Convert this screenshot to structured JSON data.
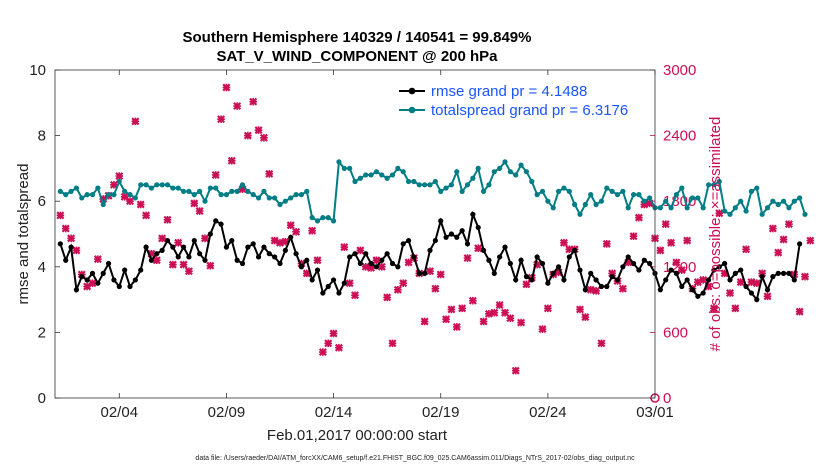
{
  "chart_data": {
    "type": "line",
    "title": "Southern Hemisphere 140329 / 140541 = 99.849%",
    "subtitle": "SAT_V_WIND_COMPONENT @ 200 hPa",
    "xlabel": "Feb.01,2017 00:00:00 start",
    "ylabel": "rmse and totalspread",
    "y2label": "# of obs: o=possible; ×=assimilated",
    "xlim": [
      1,
      29
    ],
    "ylim": [
      0,
      10
    ],
    "y2lim": [
      0,
      3000
    ],
    "xticks": [
      {
        "value": 4,
        "label": "02/04"
      },
      {
        "value": 9,
        "label": "02/09"
      },
      {
        "value": 14,
        "label": "02/14"
      },
      {
        "value": 19,
        "label": "02/19"
      },
      {
        "value": 24,
        "label": "02/24"
      },
      {
        "value": 29,
        "label": "03/01"
      }
    ],
    "yticks": [
      "0",
      "2",
      "4",
      "6",
      "8",
      "10"
    ],
    "y2ticks": [
      "0",
      "600",
      "1200",
      "1800",
      "2400",
      "3000"
    ],
    "legend_position": "top-right",
    "x_step_days": 0.25,
    "series": [
      {
        "name": "rmse grand pr = 4.1488",
        "color": "#000000",
        "axis": "left",
        "values": [
          4.7,
          4.2,
          4.6,
          3.3,
          3.7,
          3.6,
          3.8,
          3.5,
          3.8,
          4.1,
          3.6,
          3.4,
          3.9,
          3.4,
          3.6,
          3.9,
          4.6,
          4.2,
          4.4,
          4.5,
          4.8,
          4.6,
          4.3,
          4.6,
          4.3,
          4.8,
          4.4,
          4.2,
          5.0,
          5.4,
          5.3,
          4.6,
          4.8,
          4.2,
          4.1,
          4.6,
          4.7,
          4.3,
          4.6,
          4.4,
          4.3,
          4.1,
          4.5,
          4.9,
          4.4,
          4.0,
          4.2,
          3.6,
          3.9,
          3.2,
          3.4,
          3.6,
          3.2,
          3.5,
          4.3,
          4.4,
          4.1,
          4.4,
          4.1,
          4.0,
          4.2,
          4.4,
          4.1,
          4.0,
          4.7,
          4.8,
          4.3,
          3.8,
          3.8,
          4.5,
          4.8,
          5.4,
          4.9,
          5.0,
          4.9,
          5.1,
          4.7,
          5.6,
          5.2,
          4.5,
          4.2,
          3.8,
          4.3,
          4.6,
          4.1,
          3.6,
          4.2,
          3.7,
          3.6,
          4.3,
          4.1,
          3.5,
          3.8,
          4.0,
          3.6,
          4.3,
          4.5,
          3.9,
          3.3,
          3.8,
          3.6,
          3.4,
          3.4,
          3.7,
          3.6,
          4.0,
          4.3,
          4.1,
          3.9,
          4.2,
          4.1,
          3.8,
          3.3,
          3.6,
          3.9,
          3.8,
          3.4,
          3.6,
          3.3,
          3.1,
          3.2,
          3.6,
          3.9,
          4.0,
          4.1,
          3.6,
          3.8,
          3.9,
          3.4,
          3.2,
          3.0,
          3.7,
          3.3,
          3.7,
          3.8,
          3.8,
          3.8,
          3.6,
          4.7
        ]
      },
      {
        "name": "totalspread grand pr = 6.3176",
        "color": "#007d85",
        "axis": "left",
        "values": [
          6.3,
          6.2,
          6.3,
          6.4,
          6.1,
          6.2,
          6.2,
          6.4,
          5.9,
          6.2,
          6.2,
          6.6,
          6.3,
          6.2,
          6.1,
          6.5,
          6.5,
          6.4,
          6.5,
          6.5,
          6.5,
          6.4,
          6.4,
          6.3,
          6.3,
          6.2,
          6.3,
          6.0,
          6.4,
          6.4,
          6.2,
          6.2,
          6.3,
          6.3,
          6.5,
          6.3,
          6.2,
          6.1,
          6.3,
          6.1,
          6.1,
          5.9,
          6.0,
          6.1,
          6.2,
          6.2,
          6.3,
          5.5,
          5.4,
          5.5,
          5.5,
          5.4,
          7.2,
          7.0,
          7.0,
          6.6,
          6.7,
          6.8,
          6.8,
          6.9,
          6.8,
          6.7,
          6.8,
          7.0,
          6.9,
          6.6,
          6.6,
          6.5,
          6.5,
          6.5,
          6.6,
          6.3,
          6.4,
          6.5,
          6.9,
          6.3,
          6.5,
          6.7,
          7.0,
          6.3,
          6.5,
          6.9,
          7.0,
          7.2,
          6.9,
          6.8,
          7.1,
          6.9,
          6.6,
          6.2,
          6.3,
          6.0,
          5.8,
          6.3,
          6.4,
          6.3,
          5.9,
          5.6,
          5.9,
          6.2,
          5.9,
          6.0,
          6.4,
          6.3,
          6.2,
          6.3,
          5.8,
          6.2,
          6.2,
          6.0,
          6.1,
          5.8,
          5.8,
          6.0,
          5.8,
          6.2,
          6.4,
          5.8,
          6.1,
          6.1,
          5.8,
          6.5,
          6.5,
          6.6,
          5.7,
          5.6,
          5.8,
          6.0,
          5.7,
          6.3,
          6.4,
          5.6,
          5.8,
          6.0,
          5.9,
          6.0,
          5.8,
          6.0,
          6.1,
          5.6
        ]
      },
      {
        "name": "assimilated",
        "color": "#cc0e55",
        "axis": "right",
        "marker": "x",
        "values": [
          1670,
          1550,
          1460,
          1350,
          1130,
          1020,
          1050,
          1270,
          1820,
          1850,
          1950,
          2030,
          1840,
          1800,
          2530,
          1770,
          1670,
          1320,
          1260,
          1460,
          1630,
          1220,
          1420,
          1220,
          1160,
          1780,
          1710,
          1460,
          1210,
          2040,
          2550,
          2840,
          2170,
          2670,
          1910,
          2400,
          2710,
          2450,
          2380,
          2050,
          1440,
          1420,
          1430,
          1580,
          1520,
          1230,
          1140,
          1530,
          1260,
          420,
          500,
          590,
          460,
          1380,
          1050,
          940,
          1350,
          1200,
          1190,
          1260,
          1200,
          920,
          500,
          990,
          1050,
          1240,
          1280,
          1140,
          700,
          1160,
          1000,
          1130,
          720,
          810,
          650,
          820,
          1280,
          890,
          1370,
          700,
          770,
          780,
          850,
          780,
          730,
          250,
          690,
          1040,
          1100,
          1220,
          630,
          820,
          1130,
          1150,
          1420,
          1360,
          1360,
          810,
          740,
          990,
          980,
          500,
          1410,
          1140,
          1070,
          1000,
          1240,
          1480,
          1650,
          1770,
          1780,
          1460,
          1350,
          1590,
          1420,
          1240,
          1170,
          1440,
          1000,
          1060,
          1080,
          1020,
          820,
          1690,
          1140,
          960,
          820,
          1060,
          1360,
          1060,
          1050,
          1140,
          930,
          1550,
          1330,
          1450,
          1590,
          1130,
          790,
          1110,
          1440
        ]
      }
    ]
  },
  "footer": "data file: /Users/raeder/DAI/ATM_forcXX/CAM6_setup/f.e21.FHIST_BGC.f09_025.CAM6assim.011/Diags_NTrS_2017-02/obs_diag_output.nc"
}
